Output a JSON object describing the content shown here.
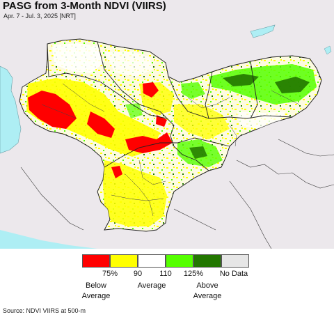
{
  "title": "PASG from 3-Month NDVI (VIIRS)",
  "subtitle": "Apr. 7 - Jul. 3, 2025 [NRT]",
  "legend": {
    "colors": [
      "#ff0000",
      "#ffff00",
      "#ffffff",
      "#55ff00",
      "#227700",
      "#e6e6e6"
    ],
    "ticks": [
      "75%",
      "90",
      "110",
      "125%",
      "No Data"
    ],
    "below_line1": "Below",
    "below_line2": "Average",
    "average": "Average",
    "above_line1": "Above",
    "above_line2": "Average"
  },
  "source": "Source: NDVI VIIRS at 500-m",
  "map_colors": {
    "sea": "#aeeef4",
    "outside": "#ece8ec",
    "border": "#222222"
  }
}
